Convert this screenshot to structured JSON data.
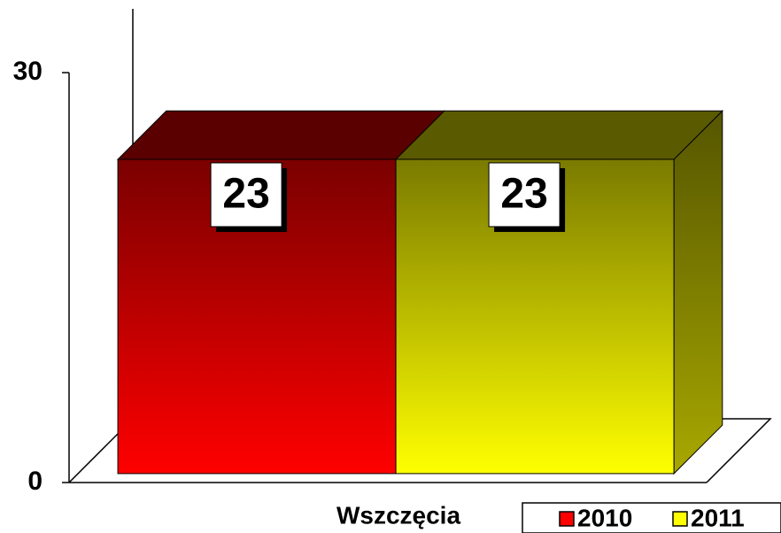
{
  "chart_data": {
    "type": "bar3d",
    "categories": [
      "Wszczęcia"
    ],
    "series": [
      {
        "name": "2010",
        "color": "#ff0000",
        "values": [
          23
        ]
      },
      {
        "name": "2011",
        "color": "#ffff00",
        "values": [
          23
        ]
      }
    ],
    "ylim": [
      0,
      30
    ],
    "yticks": [
      0,
      30
    ]
  }
}
